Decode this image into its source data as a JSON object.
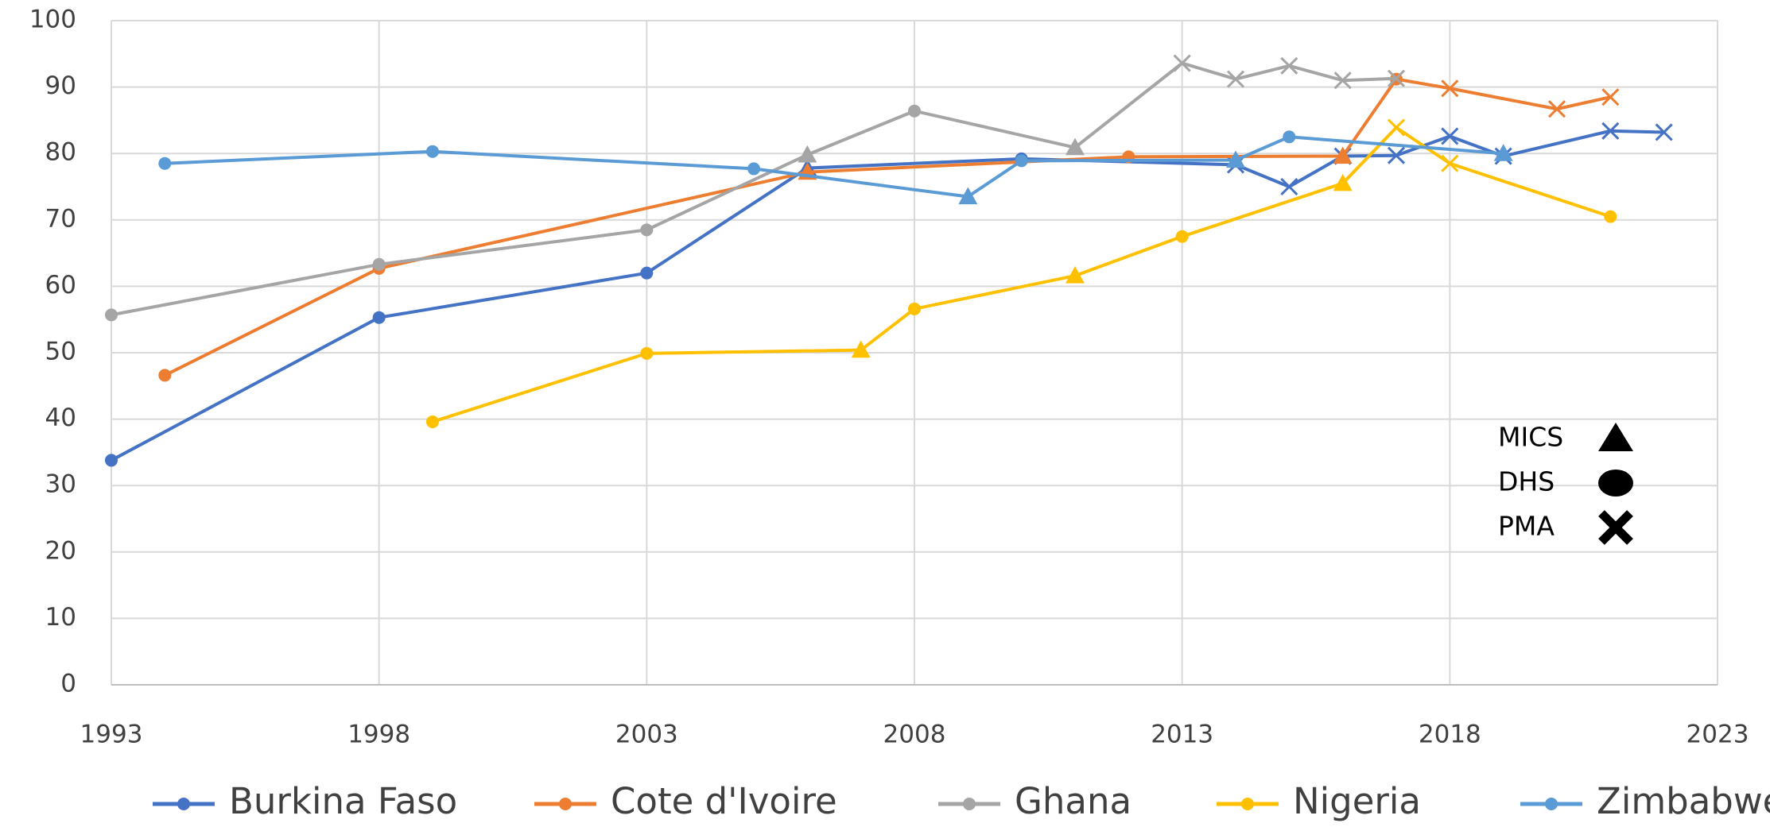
{
  "chart_data": {
    "type": "line",
    "xlim": [
      1993,
      2023
    ],
    "xticks": [
      1993,
      1998,
      2003,
      2008,
      2013,
      2018,
      2023
    ],
    "ylim": [
      0,
      100
    ],
    "yticks": [
      0,
      10,
      20,
      30,
      40,
      50,
      60,
      70,
      80,
      90,
      100
    ],
    "grid": true,
    "legend": "bottom",
    "series": [
      {
        "name": "Burkina Faso",
        "color": "#4472c4",
        "x": [
          1993,
          1998,
          2003,
          2006,
          2010,
          2014,
          2015,
          2016,
          2017,
          2018,
          2019,
          2021,
          2022
        ],
        "values": [
          33.8,
          55.3,
          62,
          77.8,
          79.2,
          78.3,
          75,
          79.6,
          79.7,
          82.6,
          79.6,
          83.4,
          83.2
        ],
        "markers": [
          "DHS",
          "DHS",
          "DHS",
          "MICS",
          "DHS",
          "PMA",
          "PMA",
          "PMA",
          "PMA",
          "PMA",
          "PMA",
          "PMA",
          "PMA"
        ]
      },
      {
        "name": "Cote d'Ivoire",
        "color": "#ed7d31",
        "x": [
          1994,
          1998,
          2006,
          2012,
          2016,
          2017,
          2018,
          2020,
          2021
        ],
        "values": [
          46.6,
          62.7,
          77.2,
          79.5,
          79.6,
          91.2,
          89.8,
          86.7,
          88.5
        ],
        "markers": [
          "DHS",
          "DHS",
          "MICS",
          "DHS",
          "MICS",
          "DHS",
          "PMA",
          "PMA",
          "PMA"
        ]
      },
      {
        "name": "Ghana",
        "color": "#a5a5a5",
        "x": [
          1993,
          1998,
          2003,
          2006,
          2008,
          2011,
          2013,
          2014,
          2015,
          2016,
          2017
        ],
        "values": [
          55.7,
          63.3,
          68.5,
          79.8,
          86.4,
          80.9,
          93.6,
          91.2,
          93.2,
          91,
          91.3
        ],
        "markers": [
          "DHS",
          "DHS",
          "DHS",
          "MICS",
          "DHS",
          "MICS",
          "PMA",
          "PMA",
          "PMA",
          "PMA",
          "PMA"
        ]
      },
      {
        "name": "Nigeria",
        "color": "#ffc000",
        "x": [
          1999,
          2003,
          2007,
          2008,
          2011,
          2013,
          2016,
          2017,
          2018,
          2021
        ],
        "values": [
          39.6,
          49.9,
          50.4,
          56.6,
          61.6,
          67.5,
          75.5,
          83.9,
          78.5,
          70.5
        ],
        "markers": [
          "DHS",
          "DHS",
          "MICS",
          "DHS",
          "MICS",
          "DHS",
          "MICS",
          "PMA",
          "PMA",
          "DHS"
        ]
      },
      {
        "name": "Zimbabwe",
        "color": "#5b9bd5",
        "x": [
          1994,
          1999,
          2005,
          2009,
          2010,
          2014,
          2015,
          2019
        ],
        "values": [
          78.5,
          80.3,
          77.7,
          73.5,
          78.9,
          79,
          82.5,
          80
        ],
        "markers": [
          "DHS",
          "DHS",
          "DHS",
          "MICS",
          "DHS",
          "MICS",
          "DHS",
          "MICS"
        ]
      }
    ],
    "marker_key": [
      {
        "label": "MICS",
        "shape": "triangle"
      },
      {
        "label": "DHS",
        "shape": "circle"
      },
      {
        "label": "PMA",
        "shape": "cross"
      }
    ]
  }
}
